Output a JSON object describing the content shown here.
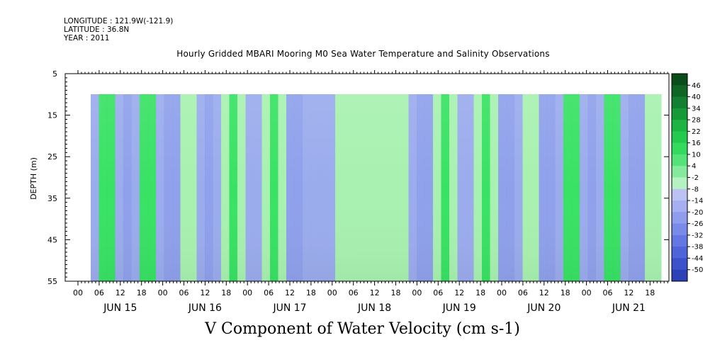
{
  "meta": {
    "longitude": "LONGITUDE : 121.9W(-121.9)",
    "latitude": "LATITUDE : 36.8N",
    "year": "YEAR : 2011"
  },
  "chart_data": {
    "type": "heatmap",
    "title": "Hourly Gridded MBARI Mooring M0 Sea Water Temperature and Salinity Observations",
    "xlabel": "V Component of Water Velocity (cm s-1)",
    "ylabel": "DEPTH (m)",
    "y_ticks": [
      5,
      15,
      25,
      35,
      45,
      55
    ],
    "y_range": [
      5,
      55
    ],
    "y_inverted": true,
    "x_hour_ticks": [
      "00",
      "06",
      "12",
      "18",
      "00",
      "06",
      "12",
      "18",
      "00",
      "06",
      "12",
      "18",
      "00",
      "06",
      "12",
      "18",
      "00",
      "06",
      "12",
      "18",
      "00",
      "06",
      "12",
      "18",
      "00",
      "06",
      "12",
      "18"
    ],
    "x_date_labels": [
      "JUN 15",
      "JUN 16",
      "JUN 17",
      "JUN 18",
      "JUN 19",
      "JUN 20",
      "JUN 21"
    ],
    "colorbar_levels": [
      46,
      40,
      34,
      28,
      22,
      16,
      10,
      4,
      -2,
      -8,
      -14,
      -20,
      -26,
      -32,
      -38,
      -44,
      -50
    ],
    "colors": {
      "strong_negative": "#0a2a8c",
      "negative": "#3a5fd6",
      "weak_negative": "#9aa8f0",
      "weak_positive": "#a8f0b0",
      "positive": "#33e060",
      "strong_positive": "#0d5a20"
    }
  }
}
